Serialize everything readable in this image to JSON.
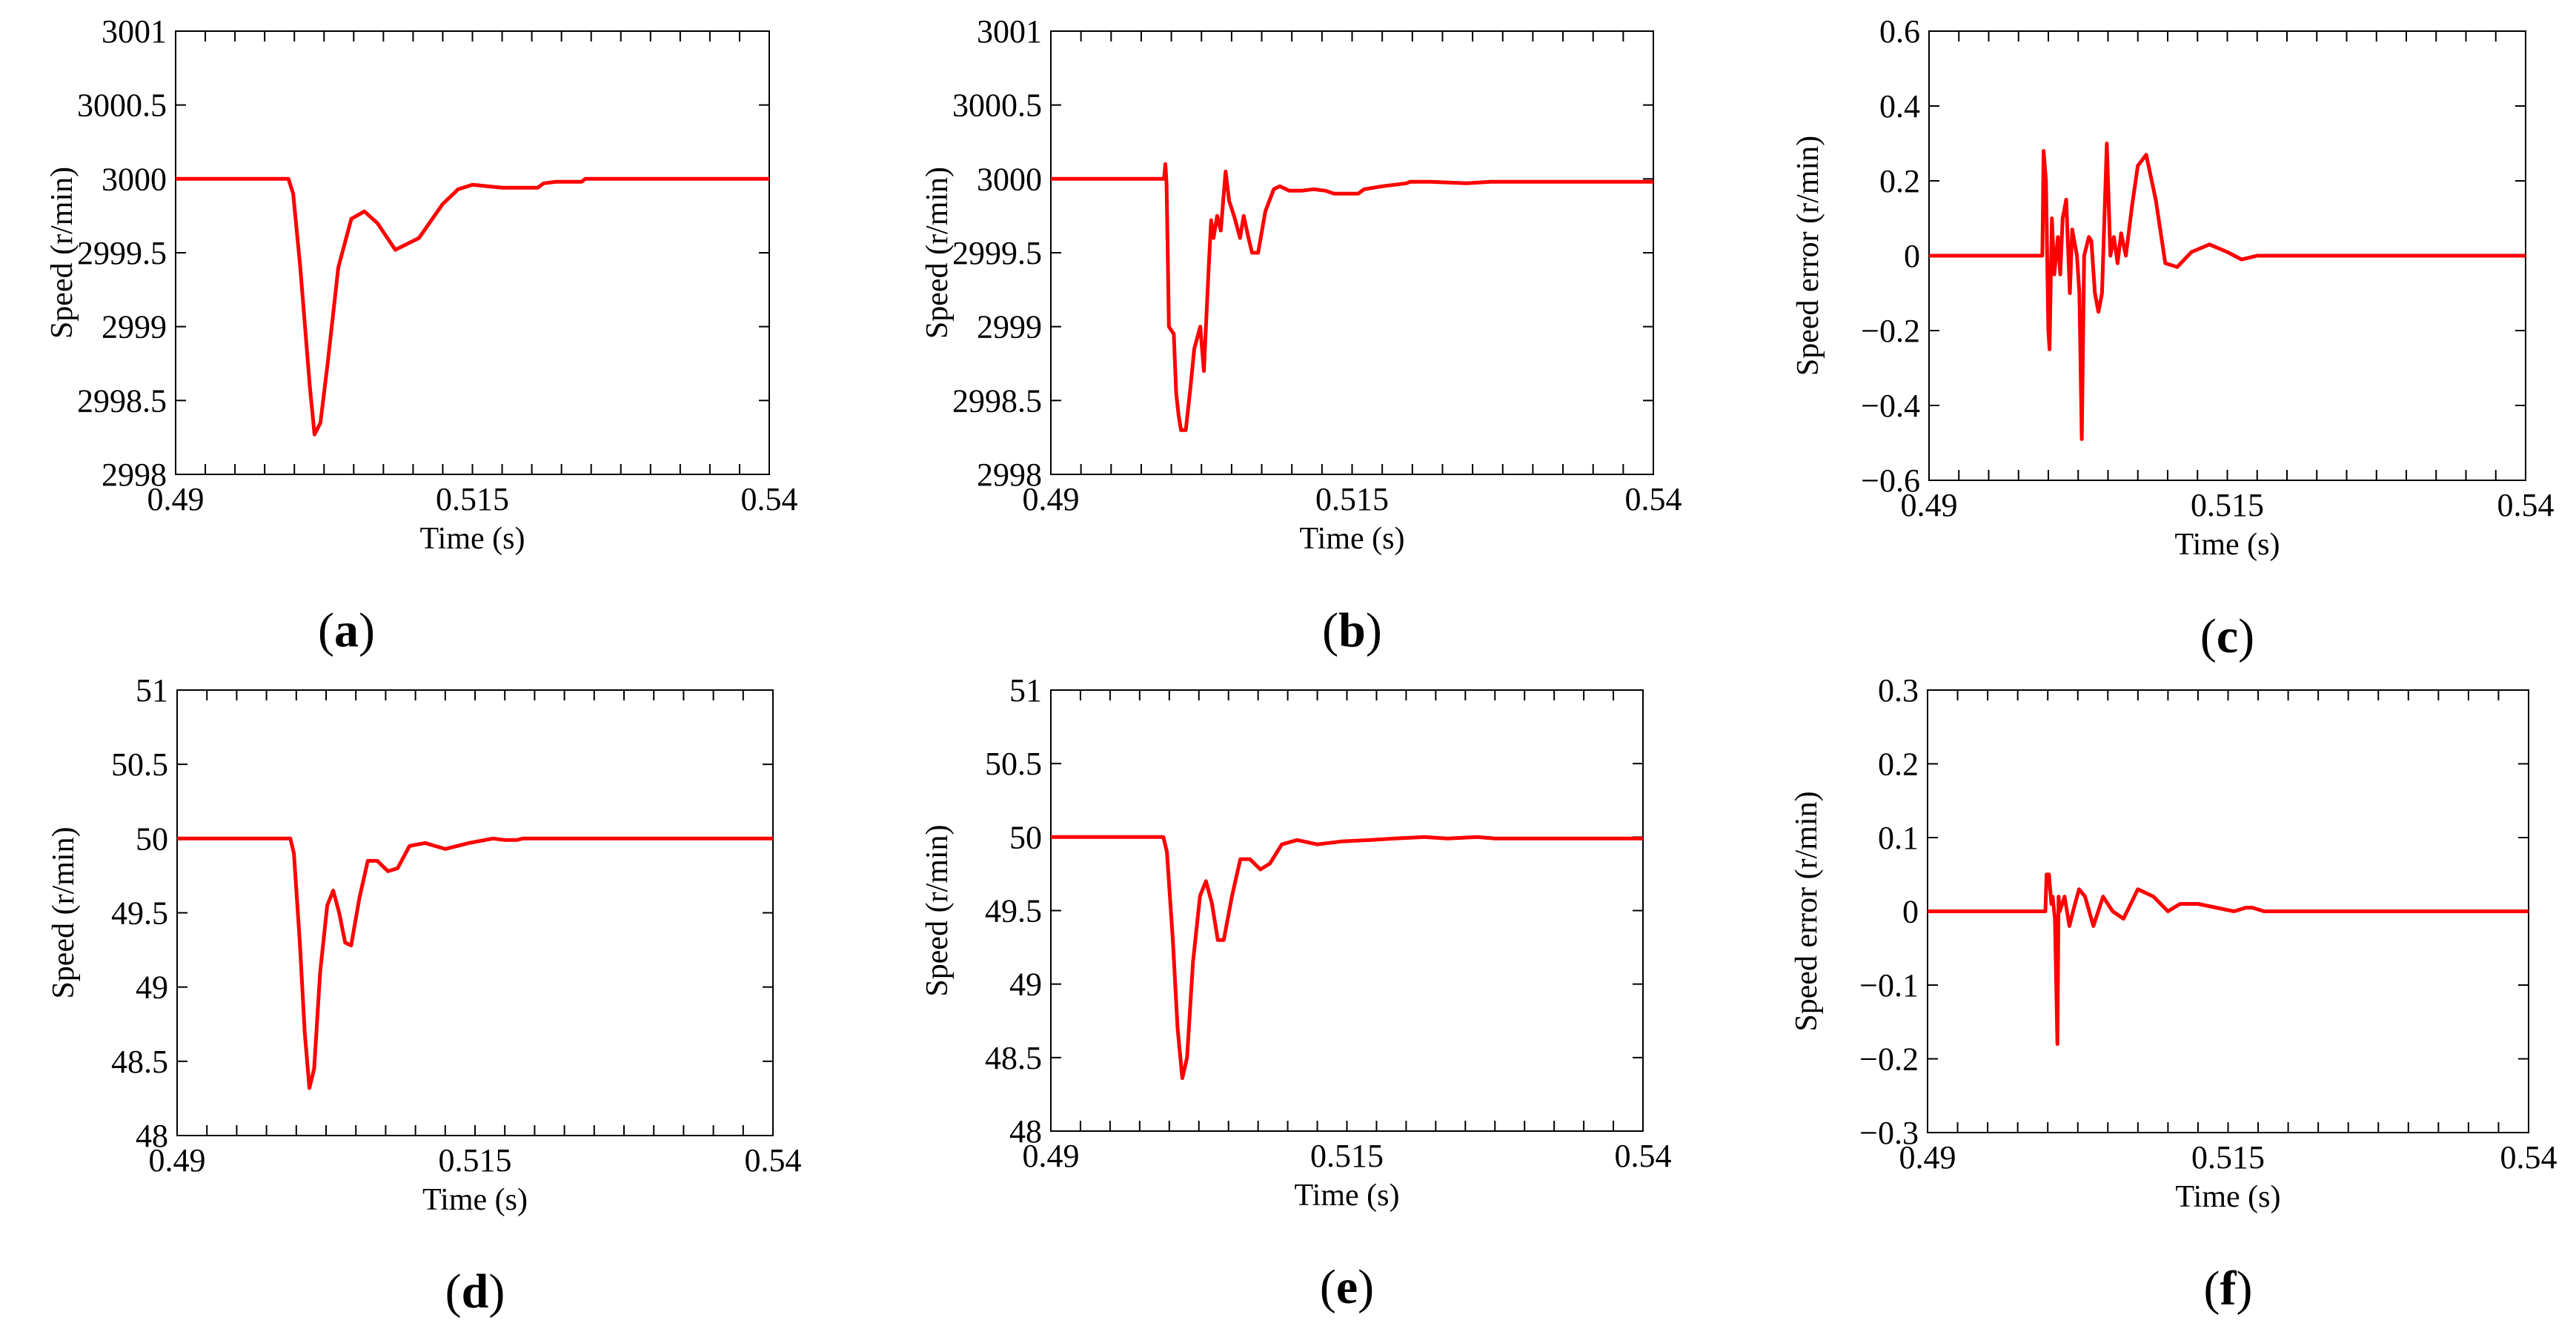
{
  "colors": {
    "line": "#ff0000",
    "axis": "#000000",
    "background": "#ffffff"
  },
  "chart_data": [
    {
      "id": "a",
      "label": "a",
      "type": "line",
      "xlabel": "Time (s)",
      "ylabel": "Speed (r/min)",
      "xlim": [
        0.49,
        0.54
      ],
      "ylim": [
        2998,
        3001
      ],
      "xticks": [
        "0.49",
        "0.515",
        "0.54"
      ],
      "yticks": [
        "2998",
        "2998.5",
        "2999",
        "2999.5",
        "3000",
        "3000.5",
        "3001"
      ],
      "series": [
        {
          "name": "speed",
          "x": [
            0.49,
            0.4995,
            0.4999,
            0.5005,
            0.5013,
            0.5017,
            0.5022,
            0.5028,
            0.5037,
            0.5048,
            0.5059,
            0.507,
            0.5085,
            0.5105,
            0.5125,
            0.5138,
            0.515,
            0.5175,
            0.5205,
            0.521,
            0.522,
            0.5242,
            0.5245,
            0.53,
            0.54
          ],
          "values": [
            3000.0,
            3000.0,
            2999.9,
            2999.4,
            2998.6,
            2998.27,
            2998.35,
            2998.75,
            2999.4,
            2999.73,
            2999.78,
            2999.7,
            2999.52,
            2999.6,
            2999.83,
            2999.93,
            2999.96,
            2999.94,
            2999.94,
            2999.97,
            2999.98,
            2999.98,
            3000.0,
            3000.0,
            3000.0
          ]
        }
      ]
    },
    {
      "id": "b",
      "label": "b",
      "type": "line",
      "xlabel": "Time (s)",
      "ylabel": "Speed (r/min)",
      "xlim": [
        0.49,
        0.54
      ],
      "ylim": [
        2998,
        3001
      ],
      "xticks": [
        "0.49",
        "0.515",
        "0.54"
      ],
      "yticks": [
        "2998",
        "2998.5",
        "2999",
        "2999.5",
        "3000",
        "3000.5",
        "3001"
      ],
      "series": [
        {
          "name": "speed",
          "x": [
            0.49,
            0.4994,
            0.4995,
            0.4996,
            0.4997,
            0.4998,
            0.5002,
            0.5004,
            0.5006,
            0.5008,
            0.5012,
            0.5016,
            0.5019,
            0.5024,
            0.5027,
            0.5031,
            0.5033,
            0.5035,
            0.5038,
            0.5041,
            0.5045,
            0.5048,
            0.5052,
            0.5057,
            0.506,
            0.5064,
            0.5067,
            0.5072,
            0.5078,
            0.5085,
            0.509,
            0.5098,
            0.5108,
            0.5118,
            0.5128,
            0.5135,
            0.5155,
            0.516,
            0.5175,
            0.5195,
            0.5198,
            0.5215,
            0.5245,
            0.5265,
            0.53,
            0.54
          ],
          "values": [
            3000.0,
            3000.0,
            3000.1,
            2999.97,
            2999.5,
            2999.0,
            2998.95,
            2998.55,
            2998.4,
            2998.3,
            2998.3,
            2998.6,
            2998.85,
            2999.0,
            2998.7,
            2999.4,
            2999.72,
            2999.6,
            2999.75,
            2999.65,
            3000.05,
            2999.85,
            2999.75,
            2999.6,
            2999.75,
            2999.6,
            2999.5,
            2999.5,
            2999.78,
            2999.93,
            2999.95,
            2999.92,
            2999.92,
            2999.93,
            2999.92,
            2999.9,
            2999.9,
            2999.93,
            2999.95,
            2999.97,
            2999.98,
            2999.98,
            2999.97,
            2999.98,
            2999.98,
            2999.98
          ]
        }
      ]
    },
    {
      "id": "c",
      "label": "c",
      "type": "line",
      "xlabel": "Time (s)",
      "ylabel": "Speed error (r/min)",
      "xlim": [
        0.49,
        0.54
      ],
      "ylim": [
        -0.6,
        0.6
      ],
      "xticks": [
        "0.49",
        "0.515",
        "0.54"
      ],
      "yticks": [
        "−0.6",
        "−0.4",
        "−0.2",
        "0",
        "0.2",
        "0.4",
        "0.6"
      ],
      "series": [
        {
          "name": "speed error",
          "x": [
            0.49,
            0.4995,
            0.4996,
            0.4998,
            0.5,
            0.5001,
            0.5003,
            0.5005,
            0.5008,
            0.501,
            0.5012,
            0.5015,
            0.5018,
            0.502,
            0.5024,
            0.5026,
            0.5028,
            0.503,
            0.5034,
            0.5036,
            0.5039,
            0.5042,
            0.5045,
            0.5049,
            0.5052,
            0.5055,
            0.5058,
            0.5061,
            0.5065,
            0.507,
            0.5075,
            0.5082,
            0.509,
            0.5098,
            0.5108,
            0.512,
            0.5135,
            0.515,
            0.5162,
            0.5175,
            0.519,
            0.52,
            0.54
          ],
          "values": [
            0.0,
            0.0,
            0.28,
            0.2,
            -0.2,
            -0.25,
            0.1,
            -0.05,
            0.05,
            -0.05,
            0.1,
            0.15,
            -0.1,
            0.07,
            0.0,
            -0.1,
            -0.49,
            0.0,
            0.05,
            0.04,
            -0.1,
            -0.15,
            -0.1,
            0.3,
            0.0,
            0.05,
            -0.02,
            0.06,
            0.0,
            0.13,
            0.24,
            0.27,
            0.15,
            -0.02,
            -0.03,
            0.01,
            0.03,
            0.01,
            -0.01,
            0.0,
            0.0,
            0.0,
            0.0
          ]
        }
      ]
    },
    {
      "id": "d",
      "label": "d",
      "type": "line",
      "xlabel": "Time (s)",
      "ylabel": "Speed (r/min)",
      "xlim": [
        0.49,
        0.54
      ],
      "ylim": [
        48,
        51
      ],
      "xticks": [
        "0.49",
        "0.515",
        "0.54"
      ],
      "yticks": [
        "48",
        "48.5",
        "49",
        "49.5",
        "50",
        "50.5",
        "51"
      ],
      "series": [
        {
          "name": "speed",
          "x": [
            0.49,
            0.4995,
            0.4998,
            0.5003,
            0.5007,
            0.5011,
            0.5015,
            0.502,
            0.5026,
            0.5031,
            0.5036,
            0.5041,
            0.5046,
            0.5053,
            0.506,
            0.5068,
            0.5077,
            0.5085,
            0.5095,
            0.5108,
            0.5125,
            0.5145,
            0.5165,
            0.5175,
            0.5185,
            0.519,
            0.52,
            0.54
          ],
          "values": [
            50.0,
            50.0,
            49.9,
            49.3,
            48.7,
            48.32,
            48.45,
            49.1,
            49.55,
            49.65,
            49.5,
            49.3,
            49.28,
            49.6,
            49.85,
            49.85,
            49.78,
            49.8,
            49.95,
            49.97,
            49.93,
            49.97,
            50.0,
            49.99,
            49.99,
            50.0,
            50.0,
            50.0
          ]
        }
      ]
    },
    {
      "id": "e",
      "label": "e",
      "type": "line",
      "xlabel": "Time (s)",
      "ylabel": "Speed (r/min)",
      "xlim": [
        0.49,
        0.54
      ],
      "ylim": [
        48,
        51
      ],
      "xticks": [
        "0.49",
        "0.515",
        "0.54"
      ],
      "yticks": [
        "48",
        "48.5",
        "49",
        "49.5",
        "50",
        "50.5",
        "51"
      ],
      "series": [
        {
          "name": "speed",
          "x": [
            0.49,
            0.4995,
            0.4998,
            0.5003,
            0.5007,
            0.5011,
            0.5015,
            0.502,
            0.5026,
            0.5031,
            0.5036,
            0.5041,
            0.5046,
            0.5053,
            0.506,
            0.5068,
            0.5077,
            0.5085,
            0.5095,
            0.5108,
            0.5125,
            0.5145,
            0.517,
            0.519,
            0.5215,
            0.5235,
            0.526,
            0.5275,
            0.54
          ],
          "values": [
            50.0,
            50.0,
            49.9,
            49.3,
            48.7,
            48.36,
            48.5,
            49.15,
            49.6,
            49.7,
            49.55,
            49.3,
            49.3,
            49.6,
            49.85,
            49.85,
            49.78,
            49.82,
            49.95,
            49.98,
            49.95,
            49.97,
            49.98,
            49.99,
            50.0,
            49.99,
            50.0,
            49.99,
            49.99
          ]
        }
      ]
    },
    {
      "id": "f",
      "label": "f",
      "type": "line",
      "xlabel": "Time (s)",
      "ylabel": "Speed error (r/min)",
      "xlim": [
        0.49,
        0.54
      ],
      "ylim": [
        -0.3,
        0.3
      ],
      "xticks": [
        "0.49",
        "0.515",
        "0.54"
      ],
      "yticks": [
        "−0.3",
        "−0.2",
        "−0.1",
        "0",
        "0.1",
        "0.2",
        "0.3"
      ],
      "series": [
        {
          "name": "speed error",
          "x": [
            0.49,
            0.4998,
            0.4999,
            0.5001,
            0.5003,
            0.5004,
            0.5006,
            0.5008,
            0.5009,
            0.501,
            0.5014,
            0.5018,
            0.5021,
            0.5026,
            0.5031,
            0.5038,
            0.5046,
            0.5054,
            0.5063,
            0.5075,
            0.5088,
            0.51,
            0.511,
            0.5125,
            0.514,
            0.5155,
            0.5165,
            0.517,
            0.518,
            0.5195,
            0.52,
            0.54
          ],
          "values": [
            0.0,
            0.0,
            0.05,
            0.05,
            0.01,
            0.02,
            -0.01,
            -0.18,
            0.02,
            0.0,
            0.02,
            -0.02,
            0.0,
            0.03,
            0.02,
            -0.02,
            0.02,
            0.0,
            -0.01,
            0.03,
            0.02,
            0.0,
            0.01,
            0.01,
            0.005,
            0.0,
            0.005,
            0.005,
            0.0,
            0.0,
            0.0,
            0.0
          ]
        }
      ]
    }
  ]
}
